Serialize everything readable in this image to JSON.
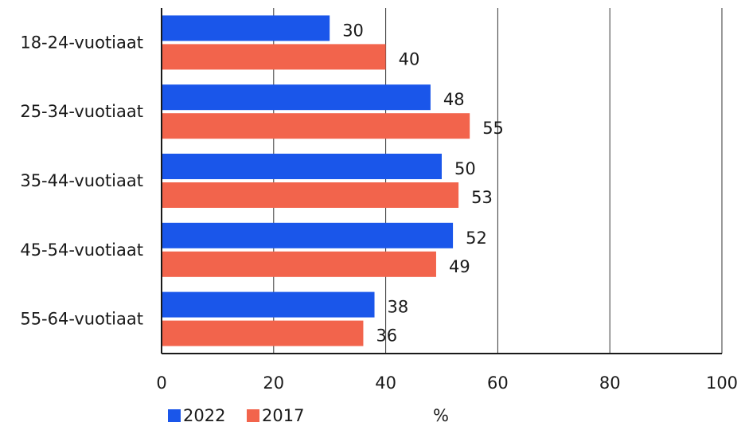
{
  "chart_data": {
    "type": "bar",
    "orientation": "horizontal",
    "categories": [
      "18-24-vuotiaat",
      "25-34-vuotiaat",
      "35-44-vuotiaat",
      "45-54-vuotiaat",
      "55-64-vuotiaat"
    ],
    "series": [
      {
        "name": "2022",
        "color": "#1a56ea",
        "values": [
          30,
          48,
          50,
          52,
          38
        ]
      },
      {
        "name": "2017",
        "color": "#f2644c",
        "values": [
          40,
          55,
          53,
          49,
          36
        ]
      }
    ],
    "x_ticks": [
      "0",
      "20",
      "40",
      "60",
      "80",
      "100"
    ],
    "xlim": [
      0,
      100
    ],
    "unit": "%",
    "grid": true,
    "legend_position": "bottom-left"
  }
}
